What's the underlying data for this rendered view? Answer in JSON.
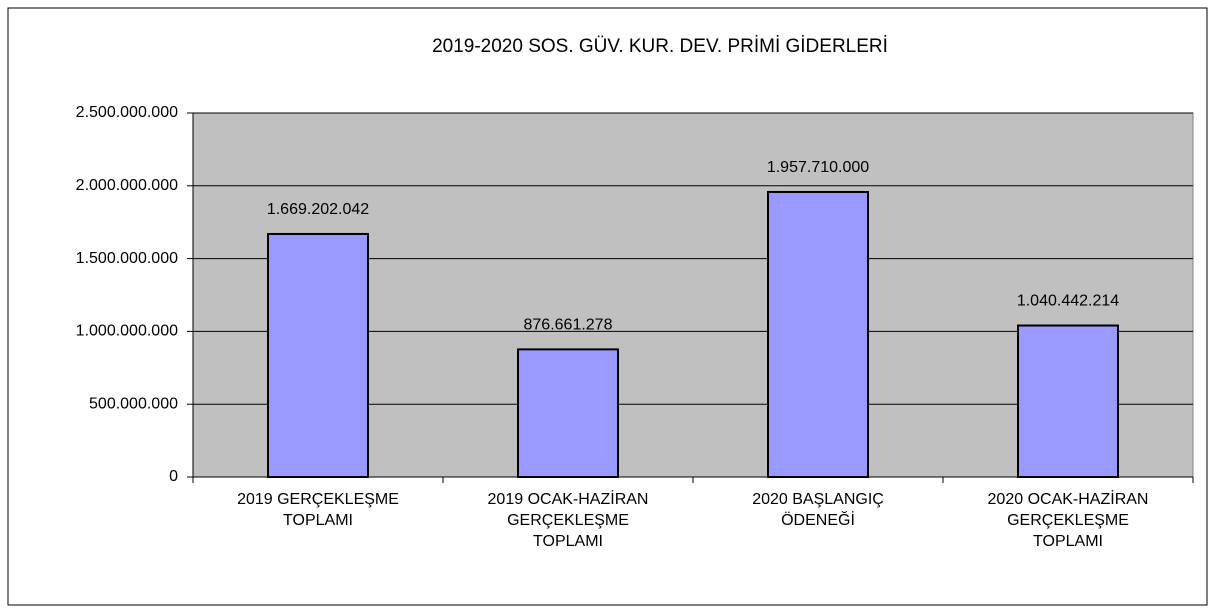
{
  "chart_data": {
    "type": "bar",
    "title": "2019-2020 SOS. GÜV. KUR. DEV. PRİMİ GİDERLERİ",
    "categories": [
      [
        "2019 GERÇEKLEŞME",
        "TOPLAMI"
      ],
      [
        "2019 OCAK-HAZİRAN",
        "GERÇEKLEŞME",
        "TOPLAMI"
      ],
      [
        "2020 BAŞLANGIÇ",
        "ÖDENEĞİ"
      ],
      [
        "2020 OCAK-HAZİRAN",
        "GERÇEKLEŞME",
        "TOPLAMI"
      ]
    ],
    "values": [
      1669202042,
      876661278,
      1957710000,
      1040442214
    ],
    "value_labels": [
      "1.669.202.042",
      "876.661.278",
      "1.957.710.000",
      "1.040.442.214"
    ],
    "color": "#9999ff",
    "ylim": [
      0,
      2500000000
    ],
    "yticks": [
      0,
      {
        "value": 500000000,
        "label": "500.000.000"
      },
      {
        "value": 1000000000,
        "label": "1.000.000.000"
      },
      {
        "value": 1500000000,
        "label": "1.500.000.000"
      },
      {
        "value": 2000000000,
        "label": "2.000.000.000"
      },
      {
        "value": 2500000000,
        "label": "2.500.000.000"
      }
    ],
    "grid": true
  }
}
